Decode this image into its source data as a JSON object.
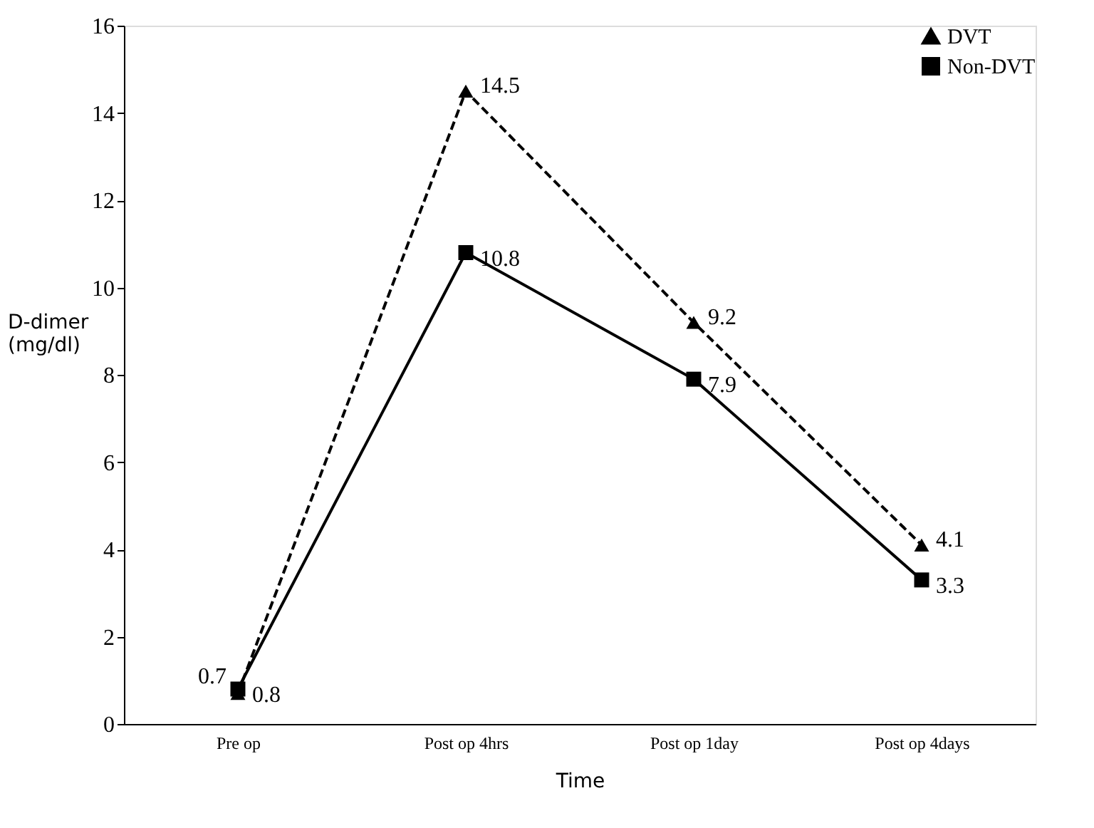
{
  "chart_data": {
    "type": "line",
    "xlabel": "Time",
    "ylabel": "D-dimer\n(mg/dl)",
    "categories": [
      "Pre op",
      "Post op 4hrs",
      "Post op 1day",
      "Post op 4days"
    ],
    "series": [
      {
        "name": "DVT",
        "color": "#000000",
        "values": [
          0.7,
          14.5,
          9.2,
          4.1
        ],
        "marker": "triangle",
        "line_style": "dashed"
      },
      {
        "name": "Non-DVT",
        "color": "#000000",
        "values": [
          0.8,
          10.8,
          7.9,
          3.3
        ],
        "marker": "square",
        "line_style": "solid"
      }
    ],
    "ylim": [
      0,
      16
    ],
    "yticks": [
      0,
      2,
      4,
      6,
      8,
      10,
      12,
      14,
      16
    ],
    "grid": false,
    "legend": "top right",
    "data_labels": true
  }
}
